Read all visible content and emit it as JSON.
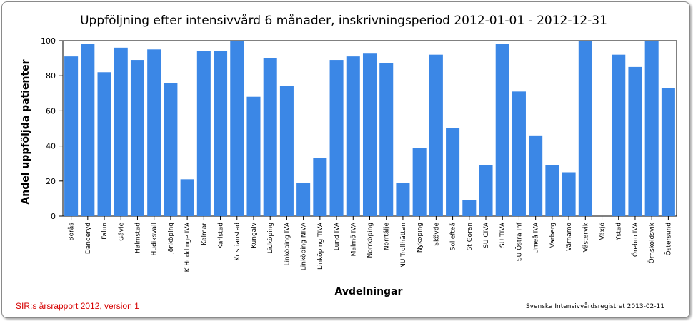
{
  "chart_data": {
    "type": "bar",
    "title": "Uppföljning efter intensivvård 6 månader, inskrivningsperiod 2012-01-01 - 2012-12-31",
    "xlabel": "Avdelningar",
    "ylabel": "Andel uppföljda patienter",
    "ylim": [
      0,
      100
    ],
    "yticks": [
      0,
      20,
      40,
      60,
      80,
      100
    ],
    "grid": false,
    "bar_color": "#3b87e6",
    "categories": [
      "Borås",
      "Danderyd",
      "Falun",
      "Gävle",
      "Halmstad",
      "Hudiksvall",
      "Jönköping",
      "K Huddinge IVA",
      "Kalmar",
      "Karlstad",
      "Kristianstad",
      "Kungälv",
      "Lidköping",
      "Linköping IVA",
      "Linköping NIVA",
      "Linköping TIVA",
      "Lund IVA",
      "Malmö IVA",
      "Norrköping",
      "Norrtälje",
      "NU Trollhättan",
      "Nyköping",
      "Skövde",
      "Sollefteå",
      "St Göran",
      "SU CIVA",
      "SU TIVA",
      "SU Östra Inf",
      "Umeå IVA",
      "Varberg",
      "Värnamo",
      "Västervik",
      "Växjö",
      "Ystad",
      "Örebro IVA",
      "Örnsköldsvik",
      "Östersund"
    ],
    "values": [
      91,
      98,
      82,
      96,
      89,
      95,
      76,
      21,
      94,
      94,
      100,
      68,
      90,
      74,
      19,
      33,
      89,
      91,
      93,
      87,
      19,
      39,
      92,
      50,
      9,
      29,
      98,
      71,
      46,
      29,
      25,
      100,
      0,
      92,
      85,
      100,
      73
    ]
  },
  "footer": {
    "left": "SIR:s årsrapport 2012, version 1",
    "right": "Svenska Intensivvårdsregistret 2013-02-11"
  }
}
